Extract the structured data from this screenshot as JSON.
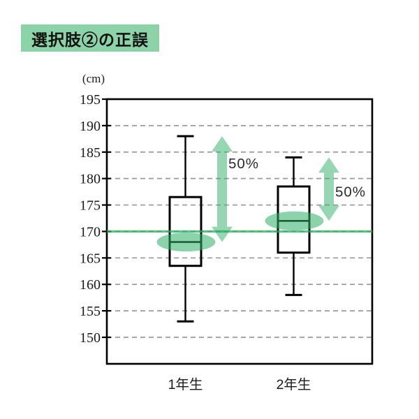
{
  "header": {
    "title": "選択肢②の正誤",
    "badge_color": "#8cd3a9"
  },
  "chart_data": {
    "type": "boxplot",
    "title": "選択肢②の正誤",
    "unit_label": "(cm)",
    "categories": [
      "1年生",
      "2年生"
    ],
    "series": [
      {
        "name": "1年生",
        "min": 153,
        "q1": 163.5,
        "median": 168,
        "q3": 176.5,
        "max": 188
      },
      {
        "name": "2年生",
        "min": 158,
        "q1": 166,
        "median": 172,
        "q3": 178.5,
        "max": 184
      }
    ],
    "ylim": [
      145,
      195
    ],
    "yticks": [
      150,
      155,
      160,
      165,
      170,
      175,
      180,
      185,
      190,
      195
    ],
    "grid": "horizontal-dashed",
    "legend": "none",
    "reference_line": {
      "value": 170
    },
    "annotations": [
      {
        "type": "median-ellipse",
        "category": "1年生",
        "value": 168
      },
      {
        "type": "median-ellipse",
        "category": "2年生",
        "value": 172
      },
      {
        "type": "double-arrow",
        "category": "1年生",
        "from": 188,
        "to": 168,
        "label": "50%"
      },
      {
        "type": "double-arrow",
        "category": "2年生",
        "from": 184,
        "to": 172,
        "label": "50%"
      }
    ],
    "colors": {
      "accent_green": "#2eae67",
      "grid": "#9a9a9a",
      "box_stroke": "#000000",
      "text": "#1a1a1a"
    }
  }
}
